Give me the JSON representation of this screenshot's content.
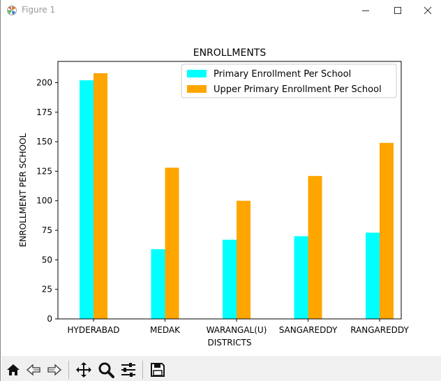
{
  "window": {
    "title": "Figure 1",
    "controls": {
      "minimize": "minimize-icon",
      "maximize": "maximize-icon",
      "close": "close-icon"
    }
  },
  "toolbar": {
    "buttons": [
      {
        "name": "home-button",
        "icon": "home-icon"
      },
      {
        "name": "back-button",
        "icon": "back-arrow-icon"
      },
      {
        "name": "forward-button",
        "icon": "forward-arrow-icon"
      },
      {
        "name": "pan-button",
        "icon": "move-icon"
      },
      {
        "name": "zoom-button",
        "icon": "zoom-icon"
      },
      {
        "name": "configure-subplots-button",
        "icon": "sliders-icon"
      },
      {
        "name": "save-button",
        "icon": "save-icon"
      }
    ]
  },
  "chart_data": {
    "type": "bar",
    "title": "ENROLLMENTS",
    "xlabel": "DISTRICTS",
    "ylabel": "ENROLLMENT PER SCHOOL",
    "categories": [
      "HYDERABAD",
      "MEDAK",
      "WARANGAL(U)",
      "SANGAREDDY",
      "RANGAREDDY"
    ],
    "series": [
      {
        "name": "Primary Enrollment Per School",
        "color": "#00ffff",
        "values": [
          202,
          59,
          67,
          70,
          73
        ]
      },
      {
        "name": "Upper Primary Enrollment Per School",
        "color": "#ffa500",
        "values": [
          208,
          128,
          100,
          121,
          149
        ]
      }
    ],
    "ylim": [
      0,
      218
    ],
    "yticks": [
      0,
      25,
      50,
      75,
      100,
      125,
      150,
      175,
      200
    ],
    "grid": false,
    "legend": "top-right"
  }
}
